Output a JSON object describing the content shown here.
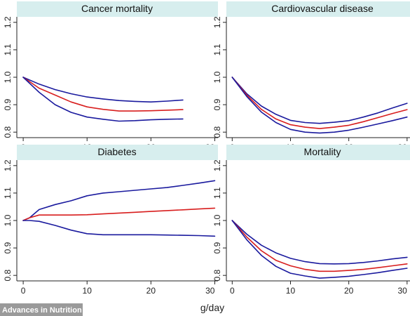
{
  "colors": {
    "bound": "#1a1a9e",
    "estimate": "#d81e1e",
    "strip": "#d7eeee"
  },
  "xlabel": "g/day",
  "credit": "Advances in Nutrition",
  "chart_data": [
    {
      "type": "line",
      "title": "Cancer mortality",
      "xlim": [
        -1,
        30.5
      ],
      "ylim": [
        0.78,
        1.22
      ],
      "xticks": [
        "0",
        "10",
        "20",
        "30"
      ],
      "yticks": [
        "0.8",
        "0.9",
        "1.0",
        "1.1",
        "1.2"
      ],
      "series": [
        {
          "role": "upper",
          "x": [
            0,
            2.5,
            5,
            7.5,
            10,
            12.5,
            15,
            17.5,
            20,
            22.5,
            25
          ],
          "y": [
            1.0,
            0.975,
            0.955,
            0.94,
            0.928,
            0.921,
            0.915,
            0.912,
            0.91,
            0.913,
            0.917
          ]
        },
        {
          "role": "estimate",
          "x": [
            0,
            2.5,
            5,
            7.5,
            10,
            12.5,
            15,
            17.5,
            20,
            22.5,
            25
          ],
          "y": [
            1.0,
            0.96,
            0.935,
            0.91,
            0.892,
            0.883,
            0.877,
            0.877,
            0.878,
            0.88,
            0.882
          ]
        },
        {
          "role": "lower",
          "x": [
            0,
            2.5,
            5,
            7.5,
            10,
            12.5,
            15,
            17.5,
            20,
            22.5,
            25
          ],
          "y": [
            1.0,
            0.945,
            0.9,
            0.872,
            0.855,
            0.847,
            0.84,
            0.842,
            0.845,
            0.847,
            0.848
          ]
        }
      ]
    },
    {
      "type": "line",
      "title": "Cardiovascular disease",
      "xlim": [
        -1,
        30.5
      ],
      "ylim": [
        0.78,
        1.22
      ],
      "xticks": [
        "0",
        "10",
        "20",
        "30"
      ],
      "yticks": [
        "0.8",
        "0.9",
        "1.0",
        "1.1",
        "1.2"
      ],
      "series": [
        {
          "role": "upper",
          "x": [
            0,
            2.5,
            5,
            7.5,
            10,
            12.5,
            15,
            17.5,
            20,
            22.5,
            25,
            27.5,
            30
          ],
          "y": [
            1.0,
            0.94,
            0.895,
            0.865,
            0.843,
            0.835,
            0.832,
            0.836,
            0.842,
            0.855,
            0.87,
            0.888,
            0.905
          ]
        },
        {
          "role": "estimate",
          "x": [
            0,
            2.5,
            5,
            7.5,
            10,
            12.5,
            15,
            17.5,
            20,
            22.5,
            25,
            27.5,
            30
          ],
          "y": [
            1.0,
            0.935,
            0.883,
            0.848,
            0.827,
            0.818,
            0.813,
            0.818,
            0.825,
            0.838,
            0.853,
            0.868,
            0.882
          ]
        },
        {
          "role": "lower",
          "x": [
            0,
            2.5,
            5,
            7.5,
            10,
            12.5,
            15,
            17.5,
            20,
            22.5,
            25,
            27.5,
            30
          ],
          "y": [
            1.0,
            0.93,
            0.873,
            0.835,
            0.81,
            0.8,
            0.797,
            0.8,
            0.807,
            0.818,
            0.83,
            0.842,
            0.855
          ]
        }
      ]
    },
    {
      "type": "line",
      "title": "Diabetes",
      "xlim": [
        -1,
        30.5
      ],
      "ylim": [
        0.78,
        1.22
      ],
      "xticks": [
        "0",
        "10",
        "20",
        "30"
      ],
      "yticks": [
        "0.8",
        "0.9",
        "1.0",
        "1.1",
        "1.2"
      ],
      "series": [
        {
          "role": "upper",
          "x": [
            0,
            1,
            2.5,
            5,
            7.5,
            10,
            12.5,
            15,
            17.5,
            20,
            22.5,
            25,
            27.5,
            30
          ],
          "y": [
            1.0,
            1.01,
            1.04,
            1.058,
            1.072,
            1.09,
            1.1,
            1.105,
            1.11,
            1.115,
            1.12,
            1.128,
            1.136,
            1.145
          ]
        },
        {
          "role": "estimate",
          "x": [
            0,
            1,
            2.5,
            5,
            7.5,
            10,
            12.5,
            15,
            17.5,
            20,
            22.5,
            25,
            27.5,
            30
          ],
          "y": [
            1.0,
            1.01,
            1.02,
            1.02,
            1.02,
            1.021,
            1.024,
            1.027,
            1.03,
            1.033,
            1.036,
            1.039,
            1.042,
            1.045
          ]
        },
        {
          "role": "lower",
          "x": [
            0,
            1,
            2.5,
            5,
            7.5,
            10,
            12.5,
            15,
            17.5,
            20,
            22.5,
            25,
            27.5,
            30
          ],
          "y": [
            1.0,
            1.0,
            0.997,
            0.982,
            0.965,
            0.952,
            0.948,
            0.948,
            0.948,
            0.948,
            0.947,
            0.946,
            0.945,
            0.943
          ]
        }
      ]
    },
    {
      "type": "line",
      "title": "Mortality",
      "xlim": [
        -1,
        30.5
      ],
      "ylim": [
        0.78,
        1.22
      ],
      "xticks": [
        "0",
        "10",
        "20",
        "30"
      ],
      "yticks": [
        "0.8",
        "0.9",
        "1.0",
        "1.1",
        "1.2"
      ],
      "series": [
        {
          "role": "upper",
          "x": [
            0,
            2.5,
            5,
            7.5,
            10,
            12.5,
            15,
            17.5,
            20,
            22.5,
            25,
            27.5,
            30
          ],
          "y": [
            1.0,
            0.95,
            0.91,
            0.882,
            0.862,
            0.85,
            0.843,
            0.842,
            0.843,
            0.847,
            0.853,
            0.86,
            0.866
          ]
        },
        {
          "role": "estimate",
          "x": [
            0,
            2.5,
            5,
            7.5,
            10,
            12.5,
            15,
            17.5,
            20,
            22.5,
            25,
            27.5,
            30
          ],
          "y": [
            1.0,
            0.94,
            0.89,
            0.855,
            0.835,
            0.822,
            0.815,
            0.815,
            0.818,
            0.822,
            0.828,
            0.835,
            0.842
          ]
        },
        {
          "role": "lower",
          "x": [
            0,
            2.5,
            5,
            7.5,
            10,
            12.5,
            15,
            17.5,
            20,
            22.5,
            25,
            27.5,
            30
          ],
          "y": [
            1.0,
            0.93,
            0.873,
            0.833,
            0.808,
            0.798,
            0.79,
            0.793,
            0.797,
            0.803,
            0.81,
            0.818,
            0.826
          ]
        }
      ]
    }
  ]
}
